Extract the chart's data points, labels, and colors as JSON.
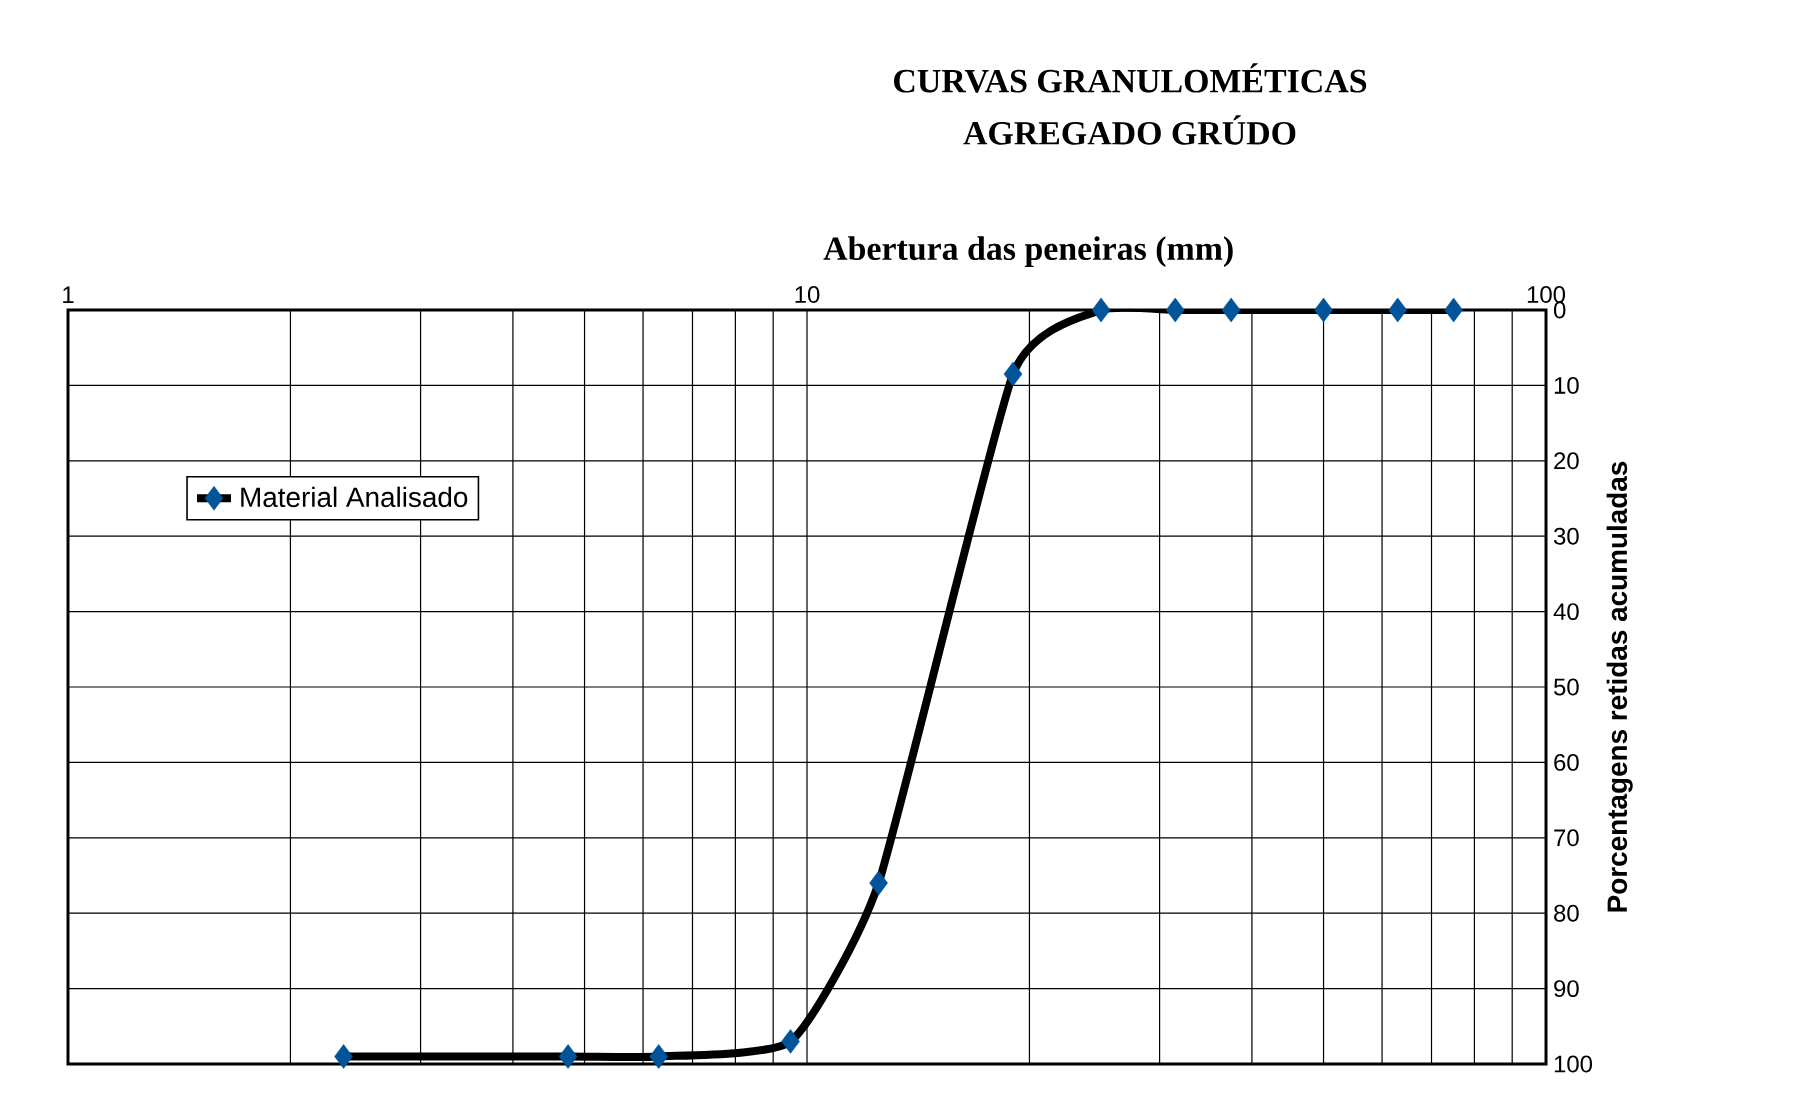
{
  "chart_data": {
    "type": "line",
    "title": "CURVAS GRANULOMÉTICAS",
    "subtitle": "AGREGADO GRÚDO",
    "xlabel": "Abertura das peneiras (mm)",
    "ylabel": "Porcentagens retidas acumuladas",
    "x": [
      2.36,
      4.75,
      6.3,
      9.5,
      12.5,
      19,
      25,
      31.5,
      37.5,
      50,
      63,
      75
    ],
    "series": [
      {
        "name": "Material Analisado",
        "color": "#000000",
        "values": [
          99,
          99,
          99,
          97,
          76,
          8.5,
          0,
          0,
          0,
          0,
          0,
          0
        ]
      }
    ],
    "log": "x",
    "xlim": [
      1,
      100
    ],
    "xticks": [
      1,
      10,
      100
    ],
    "ylim": [
      100,
      0
    ],
    "yticks": [
      0,
      10,
      20,
      30,
      40,
      50,
      60,
      70,
      80,
      90,
      100
    ],
    "grid": true,
    "legend": "top left",
    "marker": "diamond",
    "line_style": "solid"
  }
}
